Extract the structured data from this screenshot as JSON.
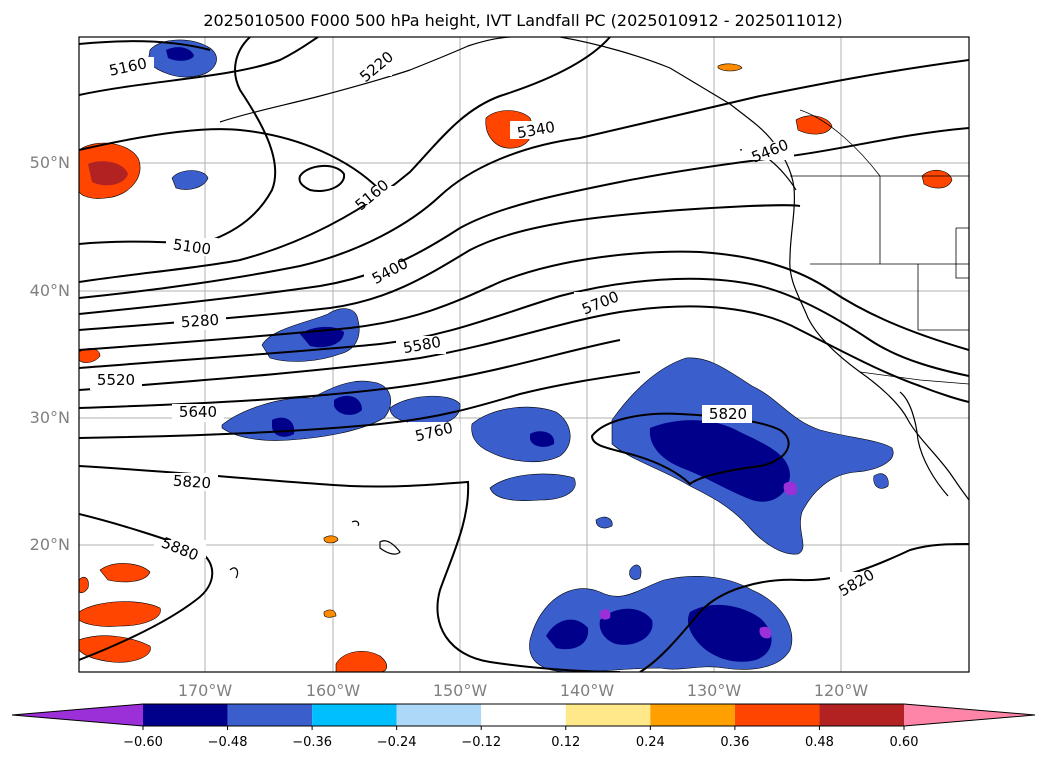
{
  "title": "2025010500 F000 500 hPa height, IVT Landfall PC (2025010912 - 2025011012)",
  "lat_ticks": [
    "50°N",
    "40°N",
    "30°N",
    "20°N"
  ],
  "lon_ticks": [
    "170°W",
    "160°W",
    "150°W",
    "140°W",
    "130°W",
    "120°W"
  ],
  "contour_labels": [
    "5160",
    "5220",
    "5340",
    "5460",
    "5160",
    "5100",
    "5400",
    "5280",
    "5700",
    "5580",
    "5520",
    "5640",
    "5760",
    "5820",
    "5820",
    "5820",
    "5880"
  ],
  "colorbar": {
    "ticks": [
      "−0.60",
      "−0.48",
      "−0.36",
      "−0.24",
      "−0.12",
      "0.12",
      "0.24",
      "0.36",
      "0.48",
      "0.60"
    ],
    "colors": [
      "#9b30d9",
      "#00008b",
      "#3a5fcd",
      "#00bfff",
      "#add8f7",
      "#ffffff",
      "#ffe88a",
      "#ffa000",
      "#ff4500",
      "#b22222",
      "#ff85a8"
    ]
  },
  "chart_data": {
    "type": "map",
    "projection": "lat-lon",
    "lat_range": [
      10,
      60
    ],
    "lon_range": [
      -180,
      -110
    ],
    "lon_ticks": [
      -170,
      -160,
      -150,
      -140,
      -130,
      -120
    ],
    "lat_ticks": [
      50,
      40,
      30,
      20
    ],
    "grid": true,
    "contour_field": "500 hPa height",
    "contour_levels": [
      5100,
      5160,
      5220,
      5280,
      5340,
      5400,
      5460,
      5520,
      5580,
      5640,
      5700,
      5760,
      5820,
      5880
    ],
    "shaded_field": "IVT Landfall PC",
    "shading_levels": [
      -0.6,
      -0.48,
      -0.36,
      -0.24,
      -0.12,
      0.12,
      0.24,
      0.36,
      0.48,
      0.6
    ]
  }
}
